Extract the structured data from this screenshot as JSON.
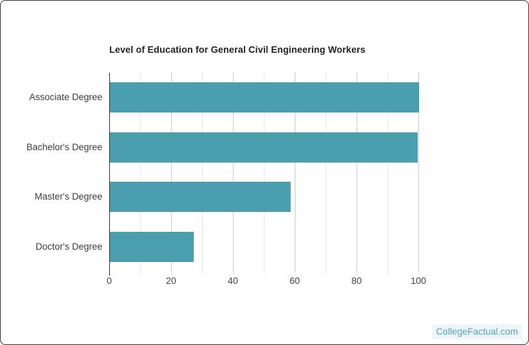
{
  "page": {
    "watermark": "CollegeFactual.com"
  },
  "chart_data": {
    "type": "bar",
    "orientation": "horizontal",
    "title": "Level of Education for General Civil Engineering Workers",
    "categories": [
      "Associate Degree",
      "Bachelor's Degree",
      "Master's Degree",
      "Doctor's Degree"
    ],
    "values": [
      100,
      99.5,
      58.5,
      27
    ],
    "xlabel": "",
    "ylabel": "",
    "x_ticks": [
      0,
      20,
      40,
      60,
      80,
      100
    ],
    "xlim": [
      0,
      103.8
    ],
    "grid": "vertical minor every 10, major every 20",
    "legend": "none",
    "colors": {
      "bar": "#4a9eae",
      "grid_major": "#cccccc",
      "grid_minor": "#e9e9e9",
      "axis": "#333333",
      "title_text": "#212121",
      "label_text": "#3c3c3c",
      "tick_text": "#444444",
      "watermark_text": "#55a4bc",
      "watermark_bg": "#eef6f9",
      "card_border": "#3a3a3a"
    }
  }
}
